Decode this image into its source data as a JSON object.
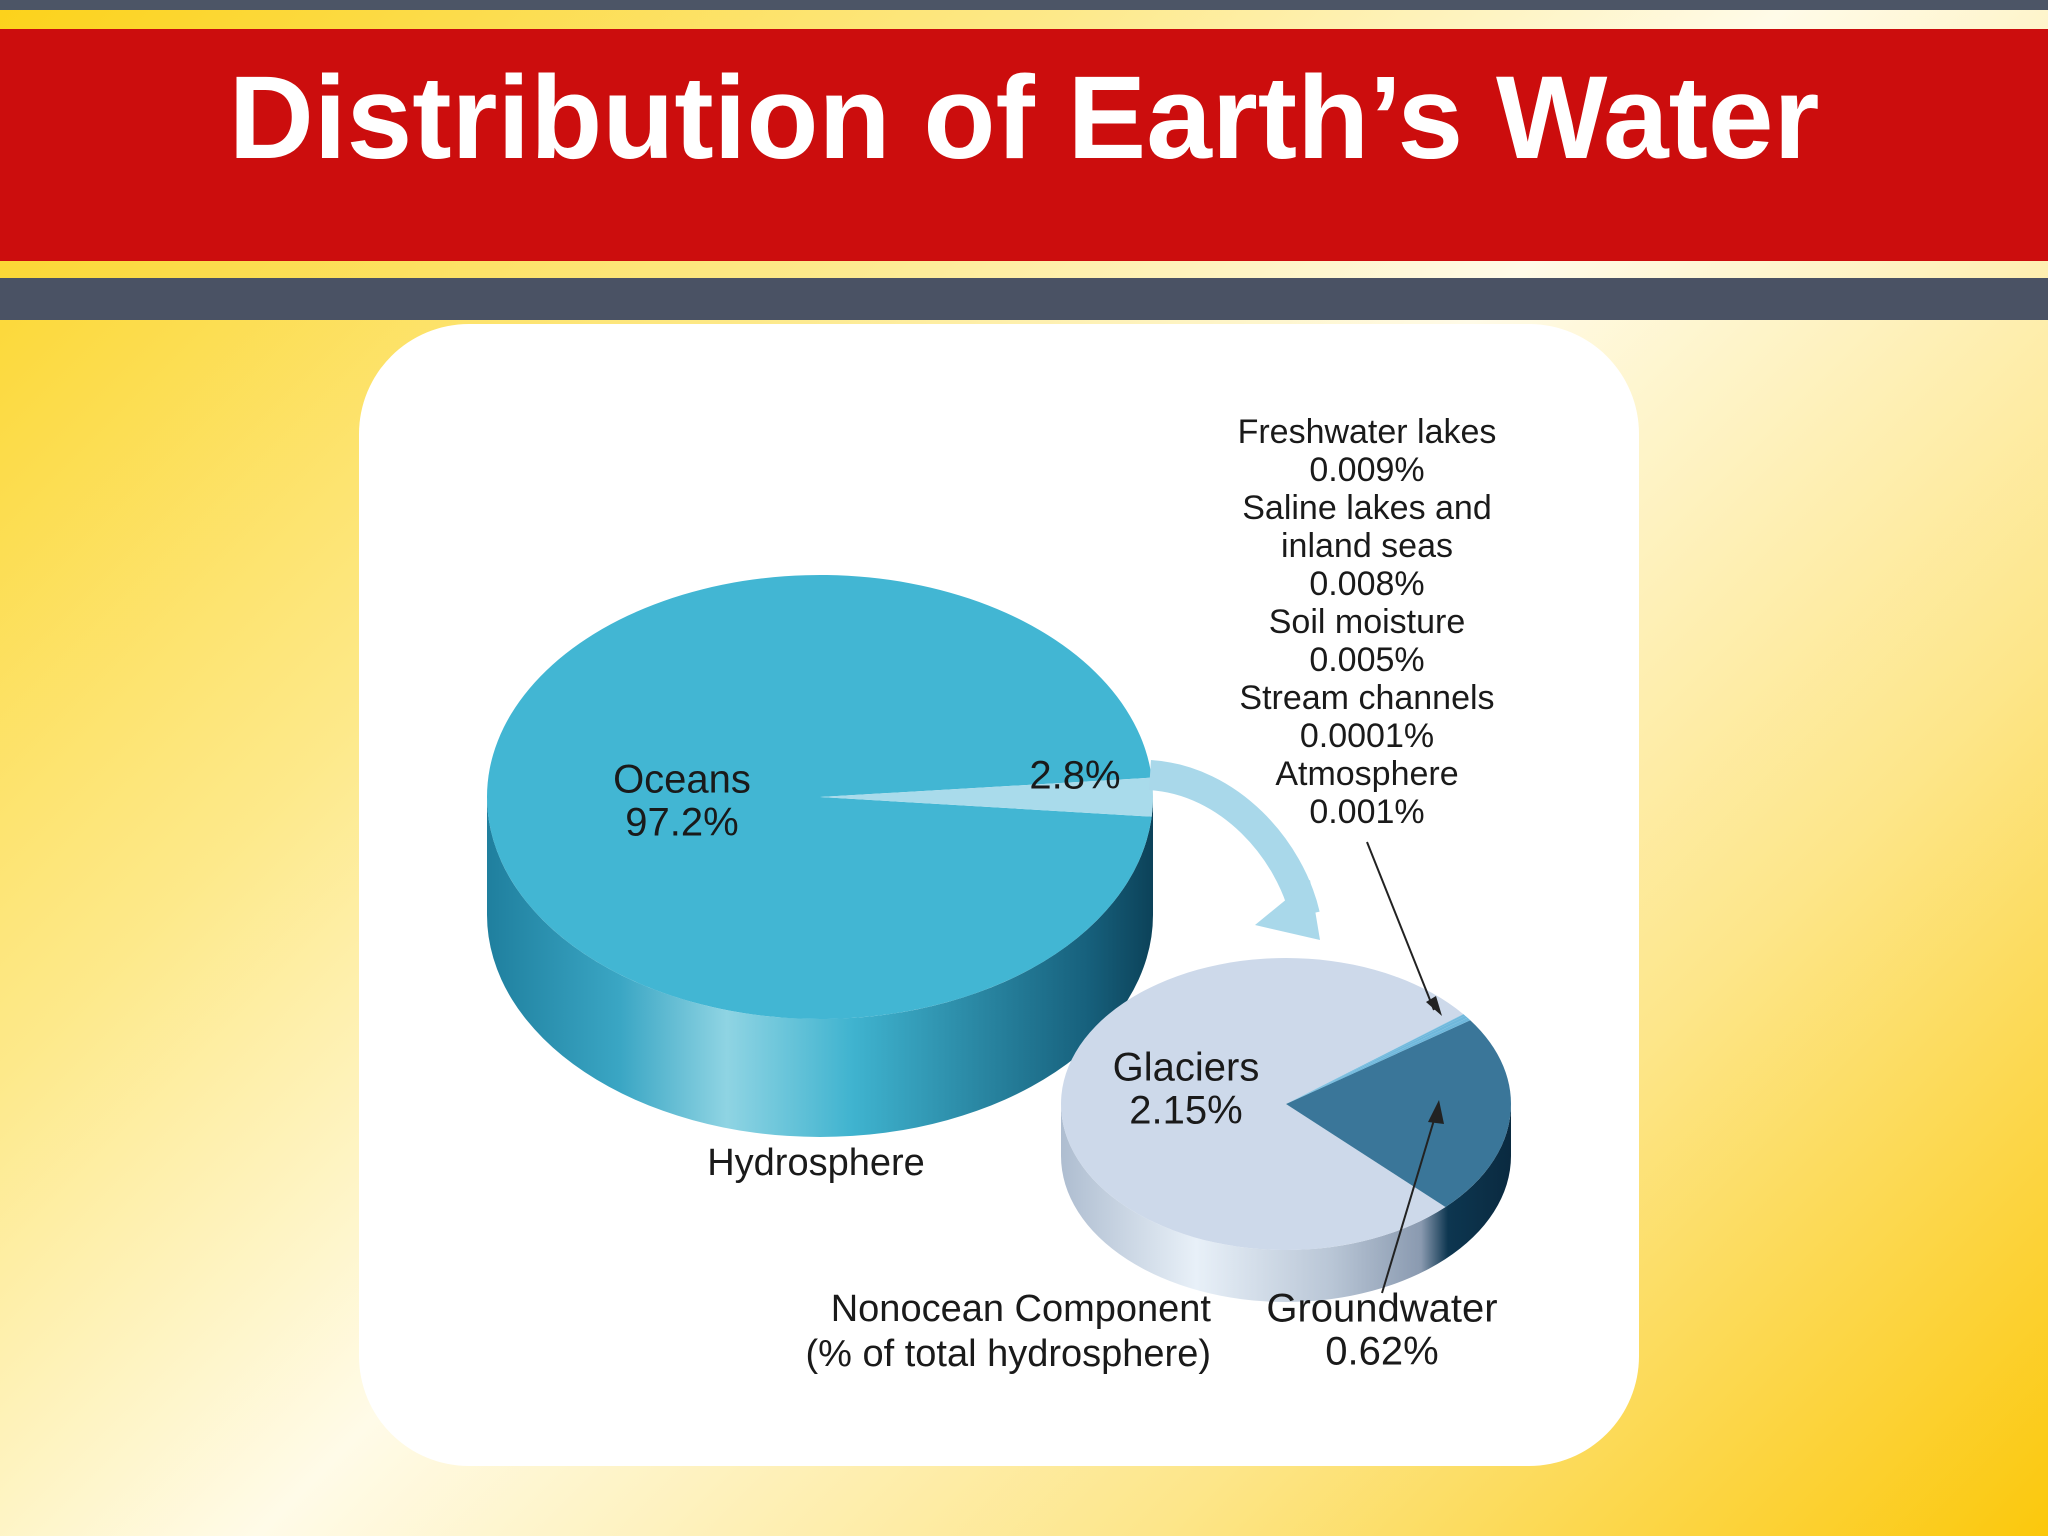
{
  "title": "Distribution of Earth’s Water",
  "chart_data": [
    {
      "type": "pie",
      "title": "Hydrosphere",
      "categories": [
        "Oceans",
        null
      ],
      "values": [
        97.2,
        2.8
      ],
      "value_labels": [
        "97.2%",
        "2.8%"
      ],
      "colors": [
        "#42b6d3",
        "#a9dbeb"
      ]
    },
    {
      "type": "pie",
      "title": "Nonocean Component",
      "subtitle": "(% of total hydrosphere)",
      "categories": [
        "Glaciers",
        "Groundwater",
        "Freshwater lakes",
        "Saline lakes and inland seas",
        "Soil moisture",
        "Stream channels",
        "Atmosphere"
      ],
      "values": [
        2.15,
        0.62,
        0.009,
        0.008,
        0.005,
        0.0001,
        0.001
      ],
      "value_labels": [
        "2.15%",
        "0.62%",
        "0.009%",
        "0.008%",
        "0.005%",
        "0.0001%",
        "0.001%"
      ],
      "colors": [
        "#cdd9ea",
        "#3a7699",
        "#6fb8dc",
        "#6fb8dc",
        "#6fb8dc",
        "#6fb8dc",
        "#6fb8dc"
      ]
    }
  ]
}
